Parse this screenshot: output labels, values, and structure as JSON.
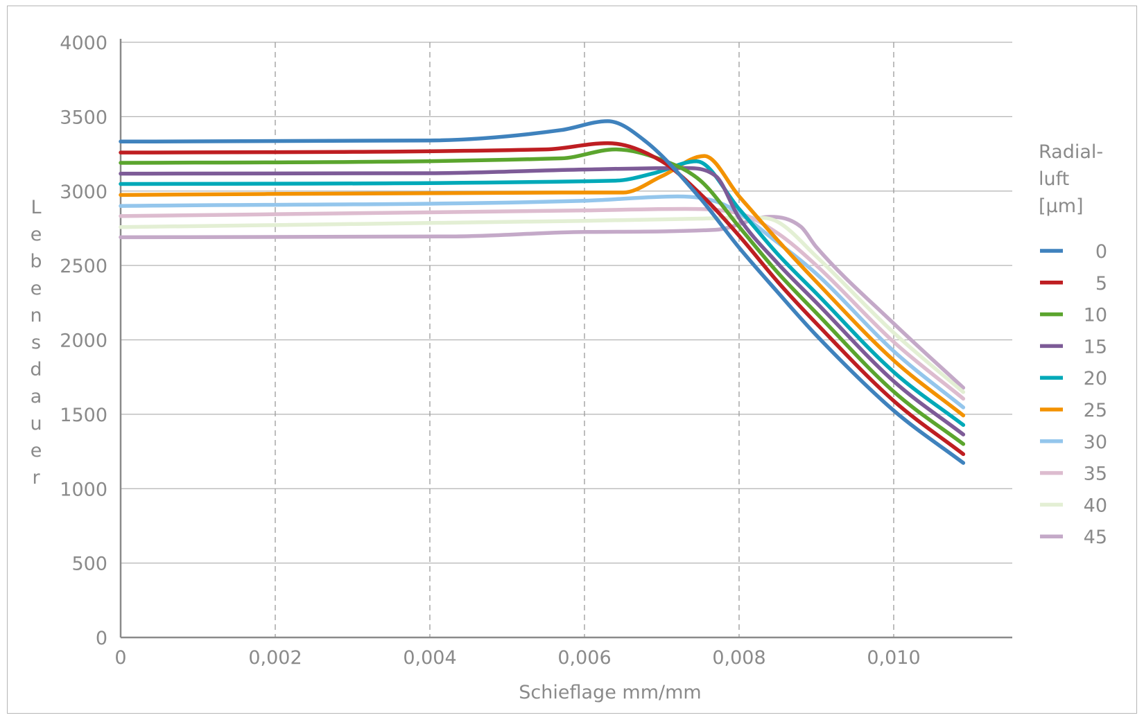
{
  "chart_data": {
    "type": "line",
    "xlabel": "Schieflage mm/mm",
    "ylabel": "Lebensdauer",
    "xlim": [
      0,
      0.0115
    ],
    "ylim": [
      0,
      4000
    ],
    "x_ticks": [
      0,
      0.002,
      0.004,
      0.006,
      0.008,
      0.01
    ],
    "x_tick_labels": [
      "0",
      "0,002",
      "0,004",
      "0,006",
      "0,008",
      "0,010"
    ],
    "y_ticks": [
      0,
      500,
      1000,
      1500,
      2000,
      2500,
      3000,
      3500,
      4000
    ],
    "y_tick_labels": [
      "0",
      "500",
      "1000",
      "1500",
      "2000",
      "2500",
      "3000",
      "3500",
      "4000"
    ],
    "grid": {
      "horizontal": "solid",
      "vertical": "dashed"
    },
    "legend": {
      "title_lines": [
        "Radial-",
        "luft",
        "[µm]"
      ],
      "placement": "right"
    },
    "series": [
      {
        "name": "0",
        "color": "#3f82bd",
        "points": [
          [
            0,
            3333
          ],
          [
            0.004,
            3340
          ],
          [
            0.0057,
            3410
          ],
          [
            0.0063,
            3470
          ],
          [
            0.0068,
            3330
          ],
          [
            0.0075,
            2950
          ],
          [
            0.008,
            2620
          ],
          [
            0.0085,
            2320
          ],
          [
            0.009,
            2030
          ],
          [
            0.01,
            1525
          ],
          [
            0.0109,
            1173
          ]
        ]
      },
      {
        "name": "5",
        "color": "#be1e22",
        "points": [
          [
            0,
            3259
          ],
          [
            0.0055,
            3280
          ],
          [
            0.0063,
            3322
          ],
          [
            0.007,
            3200
          ],
          [
            0.0075,
            2980
          ],
          [
            0.008,
            2700
          ],
          [
            0.0085,
            2390
          ],
          [
            0.009,
            2110
          ],
          [
            0.01,
            1590
          ],
          [
            0.0109,
            1232
          ]
        ]
      },
      {
        "name": "10",
        "color": "#5ba52e",
        "points": [
          [
            0,
            3190
          ],
          [
            0.0057,
            3220
          ],
          [
            0.0064,
            3280
          ],
          [
            0.007,
            3210
          ],
          [
            0.0075,
            3070
          ],
          [
            0.008,
            2760
          ],
          [
            0.0085,
            2452
          ],
          [
            0.009,
            2180
          ],
          [
            0.01,
            1652
          ],
          [
            0.0109,
            1300
          ]
        ]
      },
      {
        "name": "15",
        "color": "#7d5b97",
        "points": [
          [
            0,
            3117
          ],
          [
            0.004,
            3120
          ],
          [
            0.006,
            3145
          ],
          [
            0.0073,
            3155
          ],
          [
            0.0077,
            3100
          ],
          [
            0.008,
            2820
          ],
          [
            0.0085,
            2514
          ],
          [
            0.009,
            2250
          ],
          [
            0.01,
            1722
          ],
          [
            0.0109,
            1364
          ]
        ]
      },
      {
        "name": "20",
        "color": "#00a9b8",
        "points": [
          [
            0,
            3048
          ],
          [
            0.0064,
            3070
          ],
          [
            0.0069,
            3120
          ],
          [
            0.00745,
            3200
          ],
          [
            0.008,
            2880
          ],
          [
            0.0085,
            2576
          ],
          [
            0.009,
            2312
          ],
          [
            0.01,
            1784
          ],
          [
            0.0109,
            1428
          ]
        ]
      },
      {
        "name": "25",
        "color": "#f39200",
        "points": [
          [
            0,
            2974
          ],
          [
            0.0057,
            2990
          ],
          [
            0.0065,
            2990
          ],
          [
            0.007,
            3100
          ],
          [
            0.00755,
            3236
          ],
          [
            0.008,
            2965
          ],
          [
            0.0085,
            2669
          ],
          [
            0.009,
            2390
          ],
          [
            0.01,
            1862
          ],
          [
            0.0109,
            1492
          ]
        ]
      },
      {
        "name": "30",
        "color": "#94c6ec",
        "points": [
          [
            0,
            2900
          ],
          [
            0.006,
            2935
          ],
          [
            0.0072,
            2964
          ],
          [
            0.0078,
            2910
          ],
          [
            0.0085,
            2654
          ],
          [
            0.009,
            2444
          ],
          [
            0.01,
            1924
          ],
          [
            0.0109,
            1546
          ]
        ]
      },
      {
        "name": "35",
        "color": "#ddbccf",
        "points": [
          [
            0,
            2832
          ],
          [
            0.006,
            2870
          ],
          [
            0.0073,
            2880
          ],
          [
            0.008,
            2850
          ],
          [
            0.0085,
            2716
          ],
          [
            0.009,
            2500
          ],
          [
            0.01,
            1986
          ],
          [
            0.0109,
            1605
          ]
        ]
      },
      {
        "name": "40",
        "color": "#e3efd4",
        "points": [
          [
            0,
            2758
          ],
          [
            0.006,
            2800
          ],
          [
            0.0075,
            2815
          ],
          [
            0.0082,
            2822
          ],
          [
            0.0085,
            2793
          ],
          [
            0.009,
            2560
          ],
          [
            0.01,
            2048
          ],
          [
            0.0109,
            1649
          ]
        ]
      },
      {
        "name": "45",
        "color": "#c4a9c8",
        "points": [
          [
            0,
            2690
          ],
          [
            0.0043,
            2695
          ],
          [
            0.006,
            2725
          ],
          [
            0.0077,
            2740
          ],
          [
            0.0084,
            2827
          ],
          [
            0.0088,
            2760
          ],
          [
            0.009,
            2623
          ],
          [
            0.01,
            2110
          ],
          [
            0.0109,
            1678
          ]
        ]
      }
    ]
  }
}
